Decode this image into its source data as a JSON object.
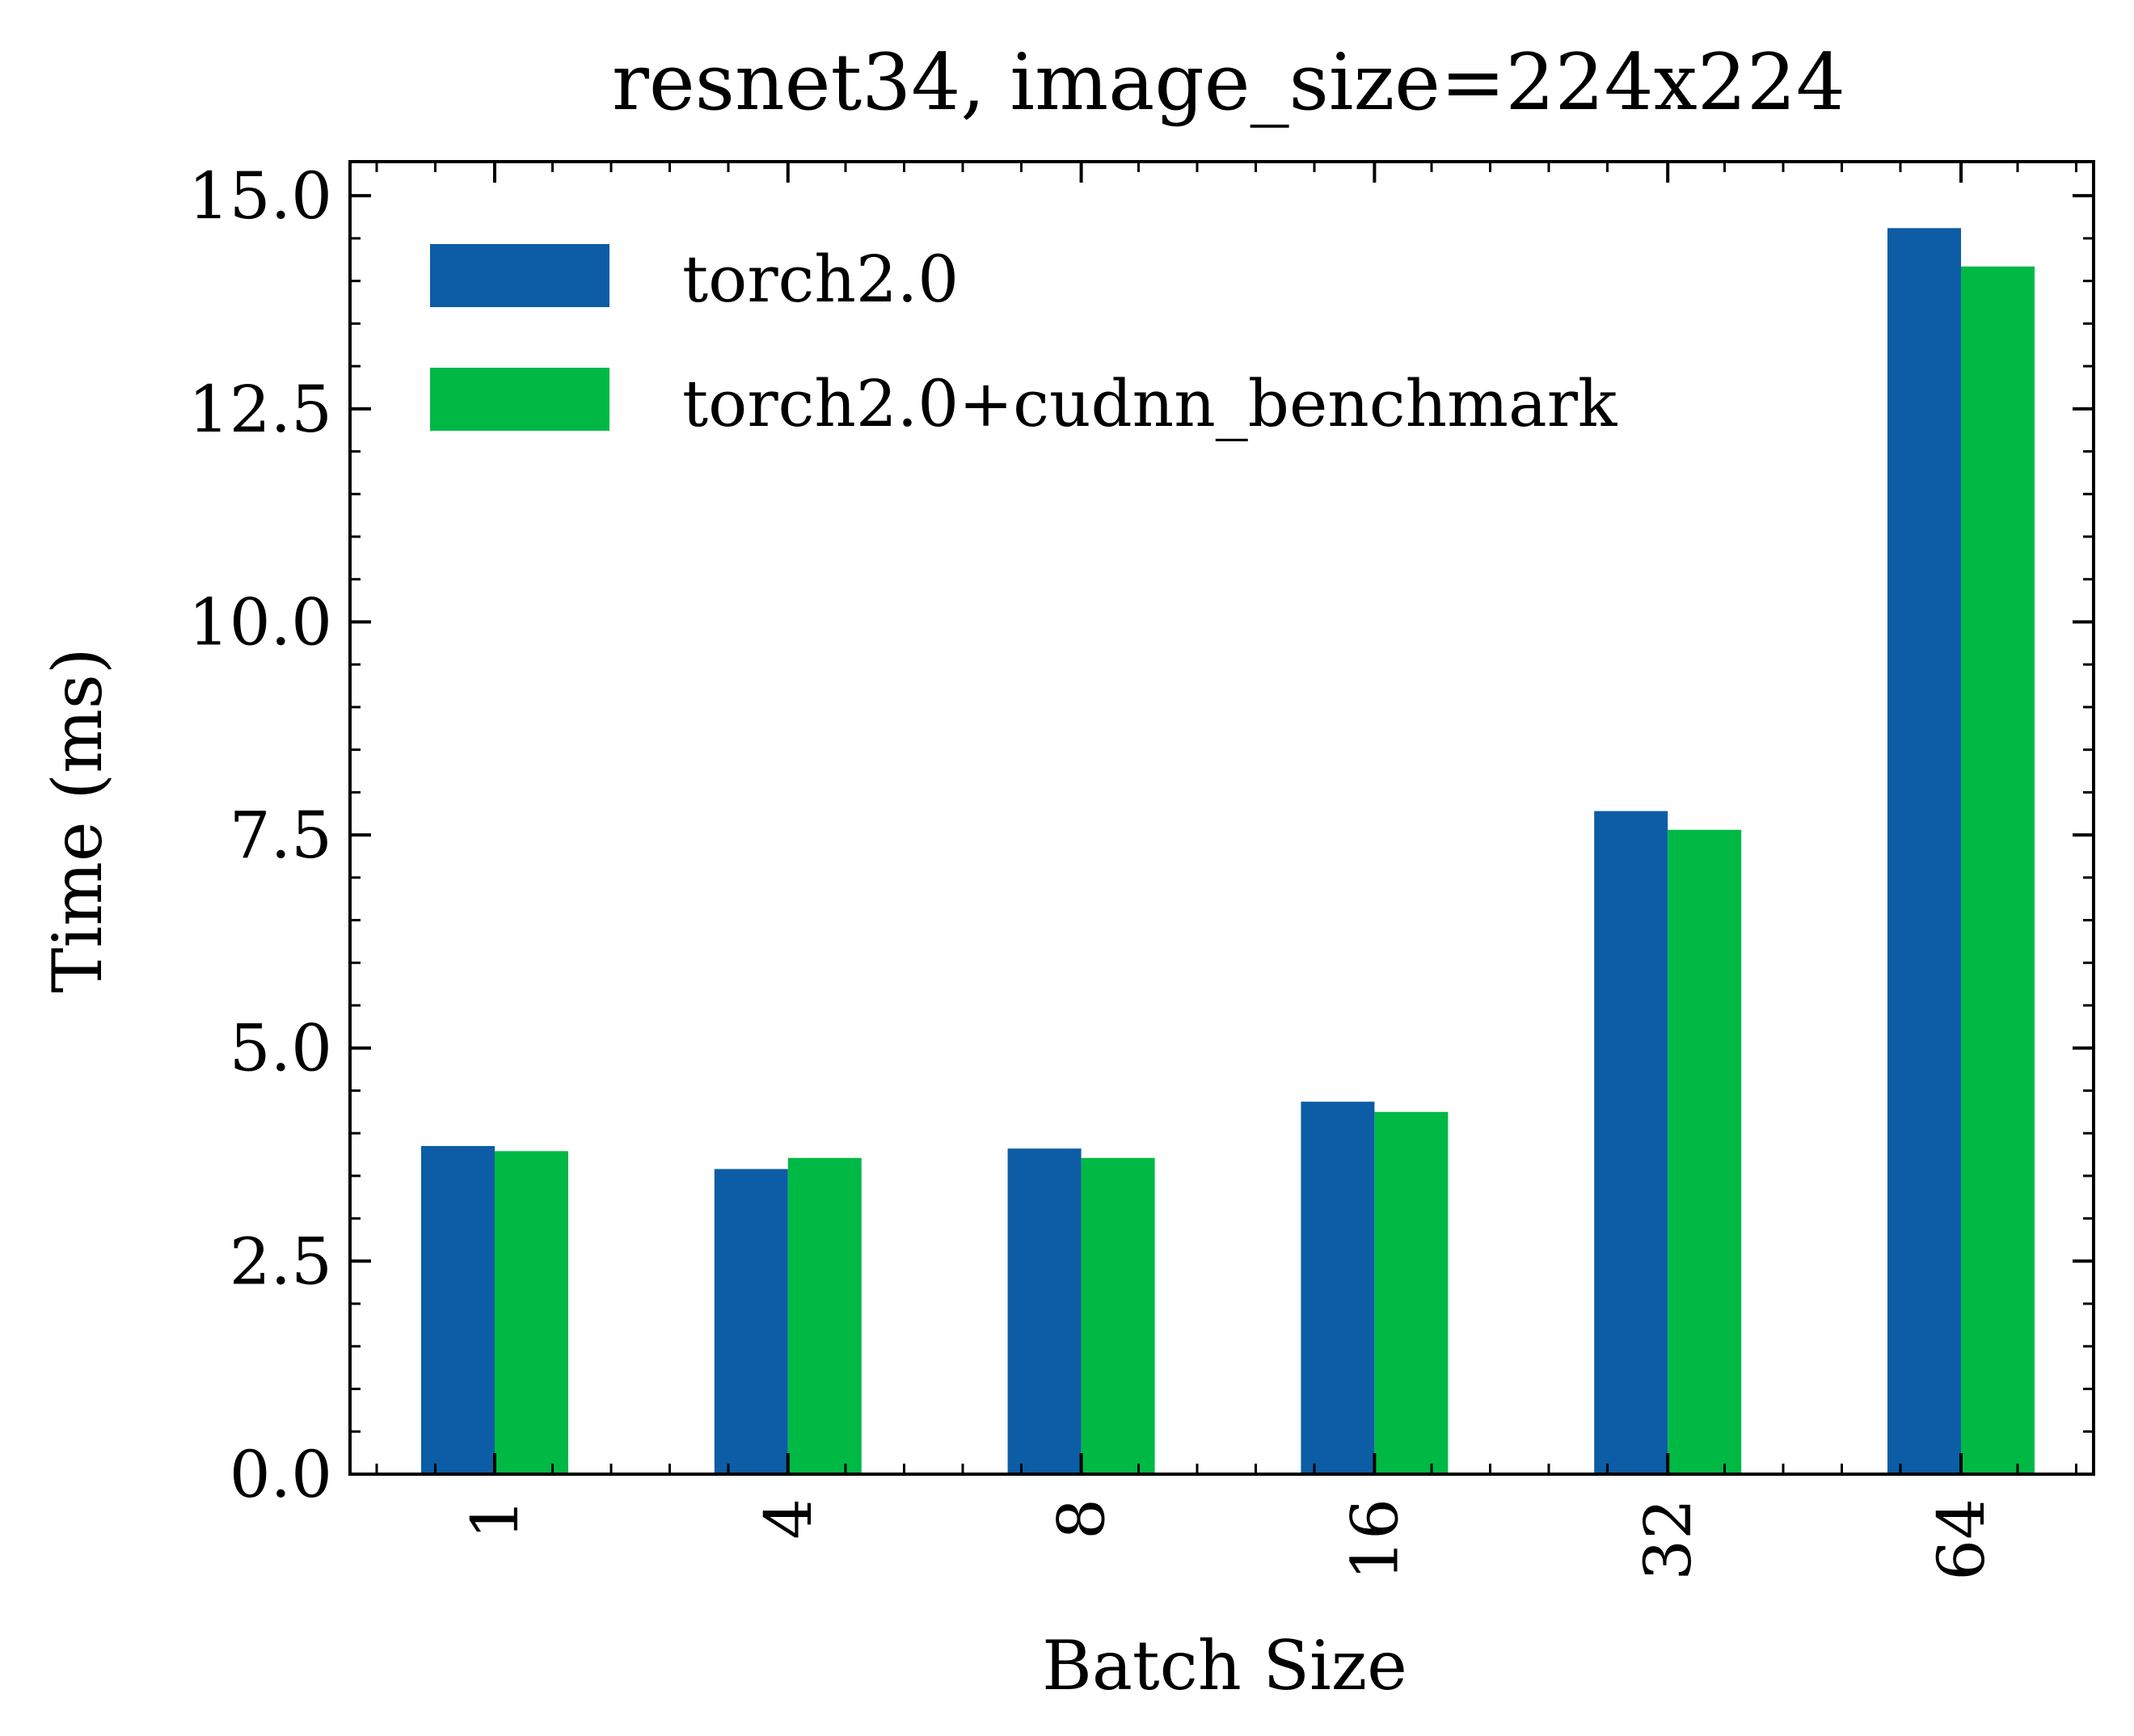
{
  "chart_data": {
    "type": "bar",
    "title": "resnet34, image_size=224x224",
    "xlabel": "Batch Size",
    "ylabel": "Time (ms)",
    "categories": [
      "1",
      "4",
      "8",
      "16",
      "32",
      "64"
    ],
    "series": [
      {
        "name": "torch2.0",
        "color": "#0C5DA5",
        "values": [
          3.85,
          3.58,
          3.82,
          4.37,
          7.78,
          14.62
        ]
      },
      {
        "name": "torch2.0+cudnn_benchmark",
        "color": "#00B945",
        "values": [
          3.79,
          3.71,
          3.71,
          4.25,
          7.56,
          14.17
        ]
      }
    ],
    "ylim": [
      0,
      15.4
    ],
    "yticks": [
      0.0,
      2.5,
      5.0,
      7.5,
      10.0,
      12.5,
      15.0
    ],
    "ytick_labels": [
      "0.0",
      "2.5",
      "5.0",
      "7.5",
      "10.0",
      "12.5",
      "15.0"
    ],
    "grid": false,
    "legend_position": "top-left",
    "xtick_rotation": "vertical"
  }
}
